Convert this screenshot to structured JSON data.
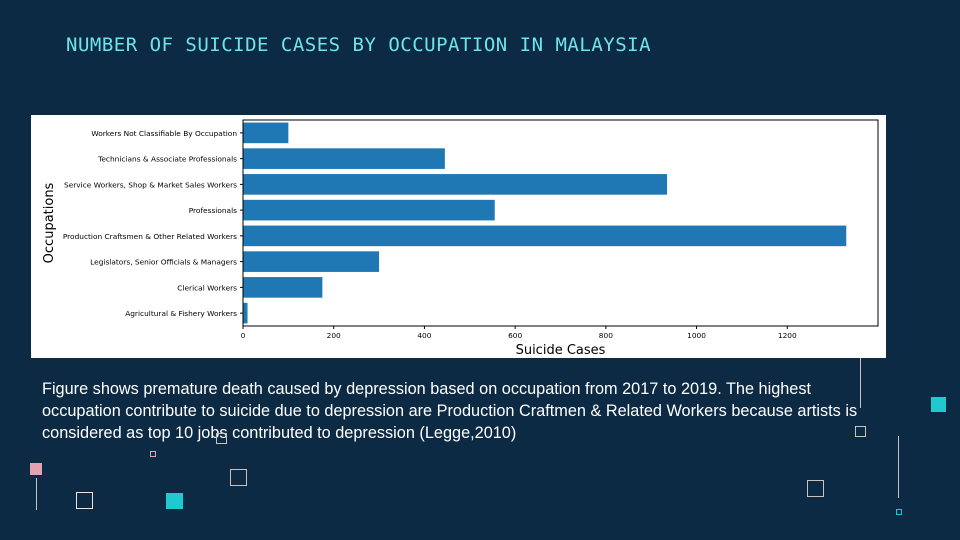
{
  "slide": {
    "title": "NUMBER OF SUICIDE CASES BY OCCUPATION IN MALAYSIA",
    "caption": "Figure shows premature death caused by depression based on occupation from 2017 to 2019. The highest occupation contribute to suicide due to depression are Production Craftmen & Related Workers because artists is considered as top 10 jobs contributed to depression (Legge,2010)"
  },
  "chart_data": {
    "type": "bar",
    "orientation": "horizontal",
    "categories": [
      "Workers Not Classifiable By Occupation",
      "Technicians & Associate Professionals",
      "Service Workers, Shop & Market Sales Workers",
      "Professionals",
      "Production Craftsmen & Other Related Workers",
      "Legislators, Senior Officials & Managers",
      "Clerical Workers",
      "Agricultural & Fishery Workers"
    ],
    "values": [
      100,
      445,
      935,
      555,
      1330,
      300,
      175,
      10
    ],
    "xlabel": "Suicide Cases",
    "ylabel": "Occupations",
    "xlim": [
      0,
      1400
    ],
    "xticks": [
      0,
      200,
      400,
      600,
      800,
      1000,
      1200
    ],
    "grid": false,
    "bar_color": "#1f77b4"
  }
}
